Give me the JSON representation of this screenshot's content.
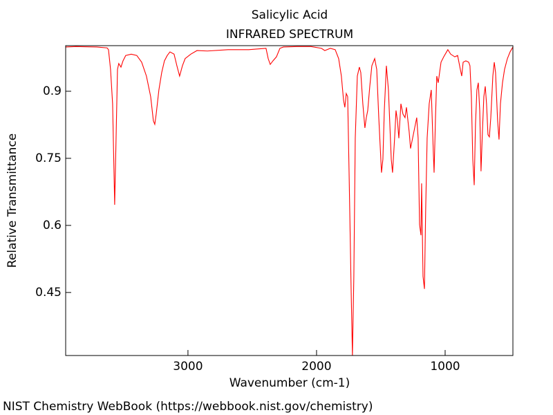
{
  "chart_data": {
    "type": "line",
    "title": "Salicylic Acid",
    "subtitle": "INFRARED SPECTRUM",
    "x_label": "Wavenumber (cm-1)",
    "y_label": "Relative Transmittance",
    "xlim": [
      3951,
      473
    ],
    "ylim": [
      0.309,
      1.002
    ],
    "xticks": [
      3000,
      2000,
      1000
    ],
    "yticks": [
      0.45,
      0.6,
      0.75,
      0.9
    ],
    "series": [
      {
        "color": "#ff0000",
        "x": [
          3951,
          3871,
          3710,
          3629,
          3618,
          3602,
          3586,
          3570,
          3559,
          3548,
          3538,
          3521,
          3505,
          3484,
          3441,
          3398,
          3360,
          3323,
          3290,
          3269,
          3258,
          3247,
          3226,
          3204,
          3183,
          3161,
          3140,
          3108,
          3086,
          3065,
          3043,
          3022,
          2978,
          2930,
          2849,
          2688,
          2527,
          2393,
          2376,
          2360,
          2339,
          2312,
          2285,
          2258,
          2151,
          2043,
          1962,
          1936,
          1893,
          1855,
          1828,
          1807,
          1790,
          1780,
          1769,
          1758,
          1747,
          1731,
          1721,
          1710,
          1699,
          1683,
          1667,
          1656,
          1640,
          1624,
          1613,
          1602,
          1586,
          1570,
          1548,
          1532,
          1516,
          1495,
          1484,
          1473,
          1457,
          1441,
          1419,
          1409,
          1393,
          1382,
          1371,
          1360,
          1344,
          1328,
          1312,
          1301,
          1280,
          1269,
          1253,
          1237,
          1221,
          1210,
          1199,
          1188,
          1183,
          1172,
          1161,
          1151,
          1140,
          1124,
          1108,
          1092,
          1086,
          1075,
          1065,
          1054,
          1043,
          1032,
          1011,
          989,
          979,
          957,
          925,
          903,
          882,
          871,
          860,
          839,
          817,
          807,
          796,
          785,
          774,
          764,
          753,
          742,
          731,
          721,
          710,
          699,
          688,
          678,
          667,
          656,
          645,
          629,
          618,
          608,
          592,
          581,
          570,
          554,
          538,
          516,
          495,
          473
        ],
        "values": [
          0.999,
          1.0,
          0.999,
          0.997,
          0.993,
          0.949,
          0.872,
          0.646,
          0.795,
          0.949,
          0.962,
          0.954,
          0.968,
          0.98,
          0.983,
          0.98,
          0.965,
          0.934,
          0.888,
          0.834,
          0.826,
          0.849,
          0.903,
          0.942,
          0.968,
          0.98,
          0.988,
          0.983,
          0.957,
          0.934,
          0.957,
          0.973,
          0.983,
          0.991,
          0.99,
          0.993,
          0.993,
          0.996,
          0.973,
          0.96,
          0.968,
          0.977,
          0.996,
          0.999,
          1.0,
          1.0,
          0.996,
          0.991,
          0.996,
          0.993,
          0.973,
          0.934,
          0.88,
          0.864,
          0.895,
          0.888,
          0.718,
          0.455,
          0.309,
          0.486,
          0.795,
          0.934,
          0.954,
          0.942,
          0.872,
          0.818,
          0.841,
          0.857,
          0.911,
          0.957,
          0.973,
          0.949,
          0.841,
          0.718,
          0.748,
          0.857,
          0.957,
          0.903,
          0.748,
          0.718,
          0.795,
          0.857,
          0.834,
          0.795,
          0.872,
          0.849,
          0.841,
          0.864,
          0.81,
          0.772,
          0.795,
          0.818,
          0.841,
          0.795,
          0.602,
          0.578,
          0.694,
          0.486,
          0.458,
          0.64,
          0.795,
          0.872,
          0.903,
          0.764,
          0.718,
          0.841,
          0.934,
          0.919,
          0.942,
          0.965,
          0.977,
          0.988,
          0.993,
          0.983,
          0.977,
          0.98,
          0.949,
          0.934,
          0.965,
          0.968,
          0.965,
          0.957,
          0.888,
          0.748,
          0.69,
          0.826,
          0.903,
          0.919,
          0.857,
          0.721,
          0.81,
          0.888,
          0.911,
          0.872,
          0.803,
          0.798,
          0.841,
          0.934,
          0.965,
          0.942,
          0.834,
          0.792,
          0.872,
          0.919,
          0.949,
          0.973,
          0.988,
          0.999
        ]
      }
    ]
  },
  "footer": "NIST Chemistry WebBook (https://webbook.nist.gov/chemistry)"
}
